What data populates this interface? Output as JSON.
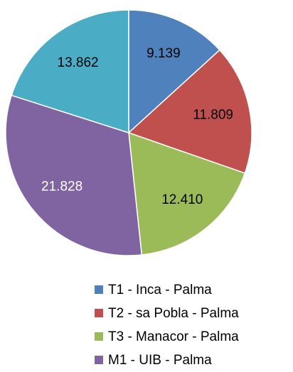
{
  "chart_data": {
    "type": "pie",
    "categories": [
      "T1 - Inca - Palma",
      "T2 - sa Pobla - Palma",
      "T3 - Manacor - Palma",
      "M1 - UIB - Palma",
      null
    ],
    "values": [
      9139,
      11809,
      12410,
      21828,
      13862
    ],
    "value_labels": [
      "9.139",
      "11.809",
      "12.410",
      "21.828",
      "13.862"
    ],
    "colors": [
      "#4f81bd",
      "#c0504d",
      "#9bbb59",
      "#8064a2",
      "#4bacc6"
    ],
    "label_colors": [
      "#000000",
      "#000000",
      "#000000",
      "#ffffff",
      "#000000"
    ],
    "legend": "bottom"
  }
}
